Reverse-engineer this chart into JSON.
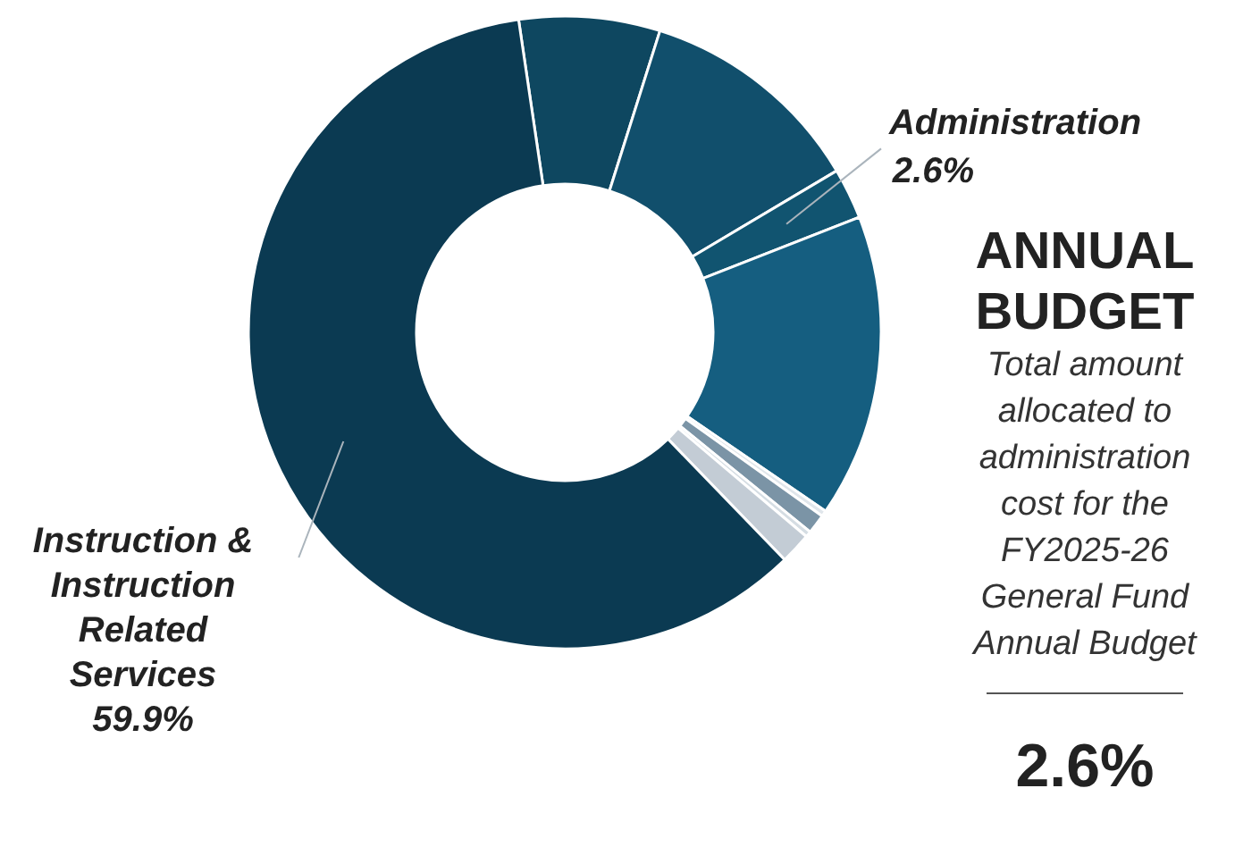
{
  "chart_data": {
    "type": "donut",
    "title": "ANNUAL BUDGET",
    "subtitle": "Total amount allocated to administration cost for the FY2025-26 General Fund Annual Budget",
    "annotations": [
      "2.6%"
    ],
    "categories": [
      null,
      null,
      "Administration",
      null,
      null,
      null,
      null,
      null,
      "Instruction & Instruction Related Services"
    ],
    "values": [
      7.2,
      11.6,
      2.6,
      15.5,
      0.3,
      1.0,
      0.3,
      1.6,
      59.9
    ],
    "value_labels": [
      null,
      null,
      "2.6%",
      null,
      null,
      null,
      null,
      null,
      "59.9%"
    ],
    "colors": [
      "#0e4760",
      "#114f6c",
      "#115470",
      "#155e80",
      "#e0e6eb",
      "#7b94a6",
      "#d5dde3",
      "#c3ccd5",
      "#0b3a52"
    ]
  }
}
